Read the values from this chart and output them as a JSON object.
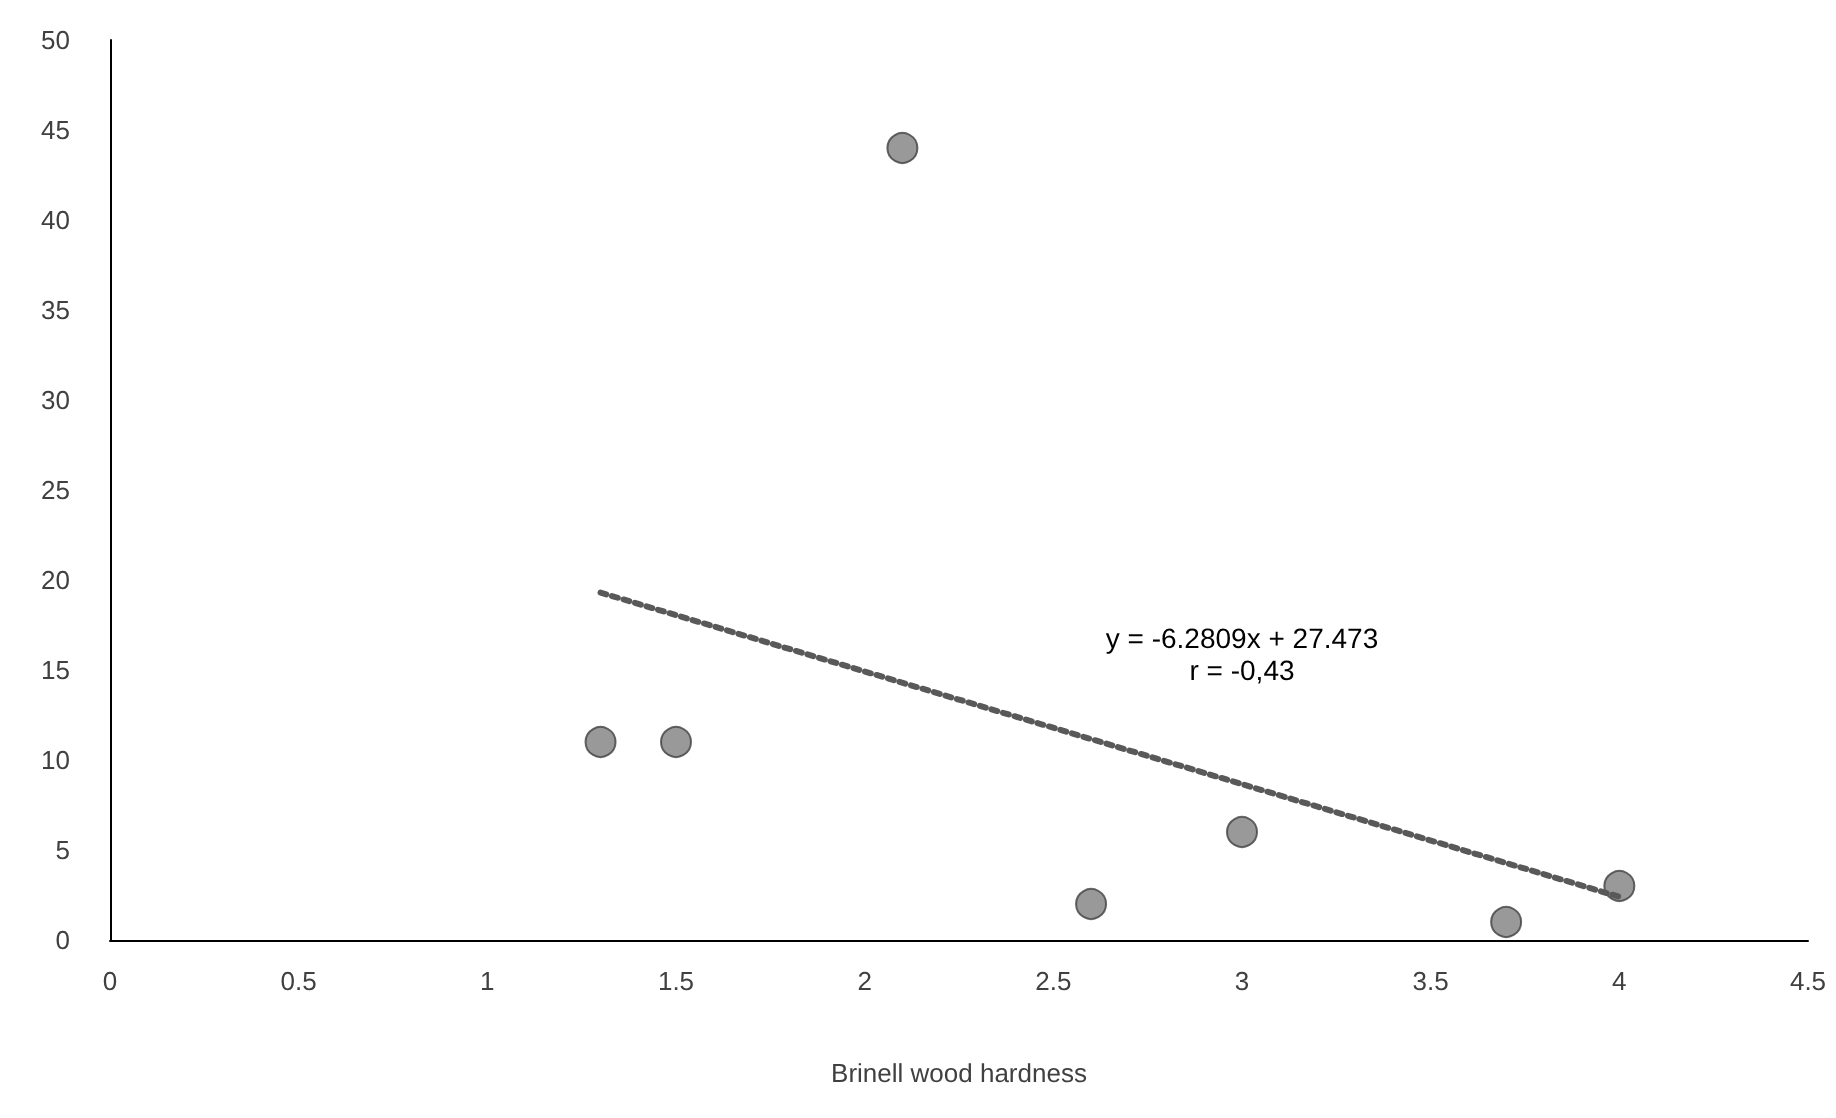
{
  "chart_data": {
    "type": "scatter",
    "xlabel": "Brinell wood hardness",
    "series": [
      {
        "color": "#808080",
        "x": [
          1.3,
          1.5,
          2.1,
          2.6,
          3.0,
          3.7,
          4.0
        ],
        "values": [
          11,
          11,
          44,
          2,
          6,
          1,
          3
        ],
        "marker": "circle"
      },
      {
        "type": "line",
        "color": "#595959",
        "x": [
          1.3,
          4.0
        ],
        "values": [
          19.3,
          2.4
        ],
        "line_style": "dotted",
        "marker": "none"
      }
    ],
    "xlim": [
      0,
      4.5
    ],
    "xticks": [
      0,
      0.5,
      1,
      1.5,
      2,
      2.5,
      3,
      3.5,
      4,
      4.5
    ],
    "ylim": [
      0,
      50
    ],
    "yticks": [
      0,
      5,
      10,
      15,
      20,
      25,
      30,
      35,
      40,
      45,
      50
    ],
    "grid": false,
    "annotations": [
      "y = -6.2809x + 27.473",
      "r = -0,43"
    ]
  }
}
